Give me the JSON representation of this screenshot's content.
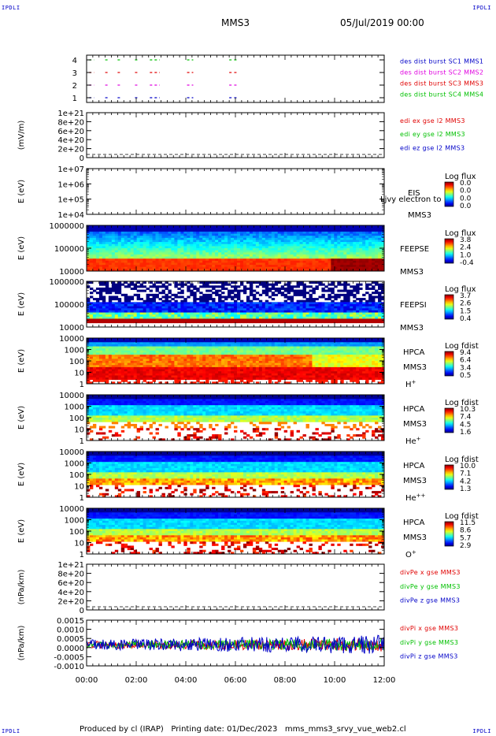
{
  "header": {
    "corner_label": "IPDLI",
    "title": "MMS3",
    "date": "05/Jul/2019 00:00"
  },
  "footer": {
    "produced": "Produced by cl (IRAP)",
    "printing": "Printing date: 01/Dec/2023",
    "script": "mms_mms3_srvy_vue_web2.cl"
  },
  "x_axis": {
    "ticks": [
      "00:00",
      "02:00",
      "04:00",
      "06:00",
      "08:00",
      "10:00",
      "12:00"
    ],
    "range_hours": [
      0,
      12
    ]
  },
  "colors": {
    "blue": "#0000c8",
    "magenta": "#e000e0",
    "red": "#e00000",
    "green": "#00c000"
  },
  "chart_data": [
    {
      "type": "scatter",
      "name": "burst",
      "yticks": [
        "4",
        "3",
        "2",
        "1"
      ],
      "ylim": [
        0.5,
        4.5
      ],
      "legend": [
        {
          "text": "des dist burst SC1 MMS1",
          "color": "#0000c8"
        },
        {
          "text": "des dist burst SC2 MMS2",
          "color": "#e000e0"
        },
        {
          "text": "des dist burst SC3 MMS3",
          "color": "#e00000"
        },
        {
          "text": "des dist burst SC4 MMS4",
          "color": "#00c000"
        }
      ],
      "series": [
        {
          "level": 4,
          "color": "#00c000",
          "segments": [
            [
              0.1,
              0.3
            ],
            [
              0.75,
              0.85
            ],
            [
              1.25,
              1.4
            ],
            [
              1.95,
              2.1
            ],
            [
              2.55,
              2.95
            ],
            [
              4.05,
              4.3
            ],
            [
              5.75,
              5.85
            ],
            [
              5.95,
              6.05
            ]
          ]
        },
        {
          "level": 3,
          "color": "#e00000",
          "segments": [
            [
              0.1,
              0.3
            ],
            [
              0.75,
              0.85
            ],
            [
              1.25,
              1.4
            ],
            [
              1.95,
              2.1
            ],
            [
              2.55,
              2.95
            ],
            [
              4.05,
              4.3
            ],
            [
              5.75,
              5.85
            ],
            [
              5.95,
              6.05
            ]
          ]
        },
        {
          "level": 2,
          "color": "#e000e0",
          "segments": [
            [
              0.1,
              0.3
            ],
            [
              0.75,
              0.85
            ],
            [
              1.25,
              1.4
            ],
            [
              1.95,
              2.1
            ],
            [
              2.55,
              2.95
            ],
            [
              4.05,
              4.3
            ],
            [
              5.75,
              5.85
            ],
            [
              5.95,
              6.05
            ]
          ]
        },
        {
          "level": 1,
          "color": "#0000c8",
          "segments": [
            [
              0.1,
              0.3
            ],
            [
              0.75,
              0.85
            ],
            [
              1.25,
              1.4
            ],
            [
              1.95,
              2.1
            ],
            [
              2.55,
              2.95
            ],
            [
              4.05,
              4.3
            ],
            [
              5.75,
              5.85
            ],
            [
              5.95,
              6.05
            ]
          ]
        }
      ]
    },
    {
      "type": "line",
      "name": "edi",
      "ylabel": "(mV/m)",
      "yticks": [
        "1e+21",
        "8e+20",
        "6e+20",
        "4e+20",
        "2e+20",
        "0"
      ],
      "ylim": [
        0,
        1e+21
      ],
      "legend": [
        {
          "text": "edi ex gse l2 MMS3",
          "color": "#e00000"
        },
        {
          "text": "edi ey gse l2 MMS3",
          "color": "#00c000"
        },
        {
          "text": "edi ez gse l2 MMS3",
          "color": "#0000c8"
        }
      ]
    },
    {
      "type": "heatmap",
      "name": "eis",
      "ylabel": "E (eV)",
      "yticks": [
        "1e+07",
        "1e+06",
        "1e+05",
        "1e+04"
      ],
      "ylim": [
        10000,
        10000000
      ],
      "label_lines": [
        "EIS",
        "MMS3"
      ],
      "overlap_text": "Ljvy electron to",
      "colorbar": {
        "title": "Log flux",
        "ticks": [
          "0.0",
          "0.0",
          "0.0",
          "0.0"
        ]
      }
    },
    {
      "type": "heatmap",
      "name": "feepse",
      "ylabel": "E (eV)",
      "yticks": [
        "1000000",
        "100000",
        "10000"
      ],
      "ylim": [
        10000,
        1000000
      ],
      "label_lines": [
        "FEEPSE",
        "MMS3"
      ],
      "colorbar": {
        "title": "Log flux",
        "ticks": [
          "3.8",
          "2.4",
          "1.0",
          "-0.4"
        ]
      }
    },
    {
      "type": "heatmap",
      "name": "feepsi",
      "ylabel": "E (eV)",
      "yticks": [
        "1000000",
        "100000",
        "10000"
      ],
      "ylim": [
        10000,
        1000000
      ],
      "label_lines": [
        "FEEPSI",
        "MMS3"
      ],
      "colorbar": {
        "title": "Log flux",
        "ticks": [
          "3.7",
          "2.6",
          "1.5",
          "0.4"
        ]
      }
    },
    {
      "type": "heatmap",
      "name": "hpca-h",
      "ylabel": "E (eV)",
      "yticks": [
        "10000",
        "1000",
        "100",
        "10",
        "1"
      ],
      "ylim": [
        1,
        40000
      ],
      "label_lines": [
        "HPCA",
        "MMS3"
      ],
      "species": "H",
      "charge": "+",
      "colorbar": {
        "title": "Log fdist",
        "ticks": [
          "9.4",
          "6.4",
          "3.4",
          "0.5"
        ]
      }
    },
    {
      "type": "heatmap",
      "name": "hpca-he",
      "ylabel": "E (eV)",
      "yticks": [
        "10000",
        "1000",
        "100",
        "10",
        "1"
      ],
      "ylim": [
        1,
        40000
      ],
      "label_lines": [
        "HPCA",
        "MMS3"
      ],
      "species": "He",
      "charge": "+",
      "colorbar": {
        "title": "Log fdist",
        "ticks": [
          "10.3",
          "7.4",
          "4.5",
          "1.6"
        ]
      }
    },
    {
      "type": "heatmap",
      "name": "hpca-hepp",
      "ylabel": "E (eV)",
      "yticks": [
        "10000",
        "1000",
        "100",
        "10",
        "1"
      ],
      "ylim": [
        1,
        40000
      ],
      "label_lines": [
        "HPCA",
        "MMS3"
      ],
      "species": "He",
      "charge": "++",
      "colorbar": {
        "title": "Log fdist",
        "ticks": [
          "10.0",
          "7.1",
          "4.2",
          "1.3"
        ]
      }
    },
    {
      "type": "heatmap",
      "name": "hpca-o",
      "ylabel": "E (eV)",
      "yticks": [
        "10000",
        "1000",
        "100",
        "10",
        "1"
      ],
      "ylim": [
        1,
        40000
      ],
      "label_lines": [
        "HPCA",
        "MMS3"
      ],
      "species": "O",
      "charge": "+",
      "colorbar": {
        "title": "Log fdist",
        "ticks": [
          "11.5",
          "8.6",
          "5.7",
          "2.9"
        ]
      }
    },
    {
      "type": "line",
      "name": "divpe",
      "ylabel": "(nPa/km)",
      "yticks": [
        "1e+21",
        "8e+20",
        "6e+20",
        "4e+20",
        "2e+20",
        "0"
      ],
      "ylim": [
        0,
        1e+21
      ],
      "legend": [
        {
          "text": "divPe x gse MMS3",
          "color": "#e00000"
        },
        {
          "text": "divPe y gse MMS3",
          "color": "#00c000"
        },
        {
          "text": "divPe z gse MMS3",
          "color": "#0000c8"
        }
      ]
    },
    {
      "type": "line",
      "name": "divpi",
      "ylabel": "(nPa/km)",
      "yticks": [
        "0.0015",
        "0.0010",
        "0.0005",
        "0.0000",
        "-0.0005",
        "-0.0010"
      ],
      "ylim": [
        -0.0013,
        0.0015
      ],
      "legend": [
        {
          "text": "divPi x gse MMS3",
          "color": "#e00000"
        },
        {
          "text": "divPi y gse MMS3",
          "color": "#00c000"
        },
        {
          "text": "divPi z gse MMS3",
          "color": "#0000c8"
        }
      ],
      "noise_amplitude": [
        0.0003,
        0.0006
      ]
    }
  ]
}
